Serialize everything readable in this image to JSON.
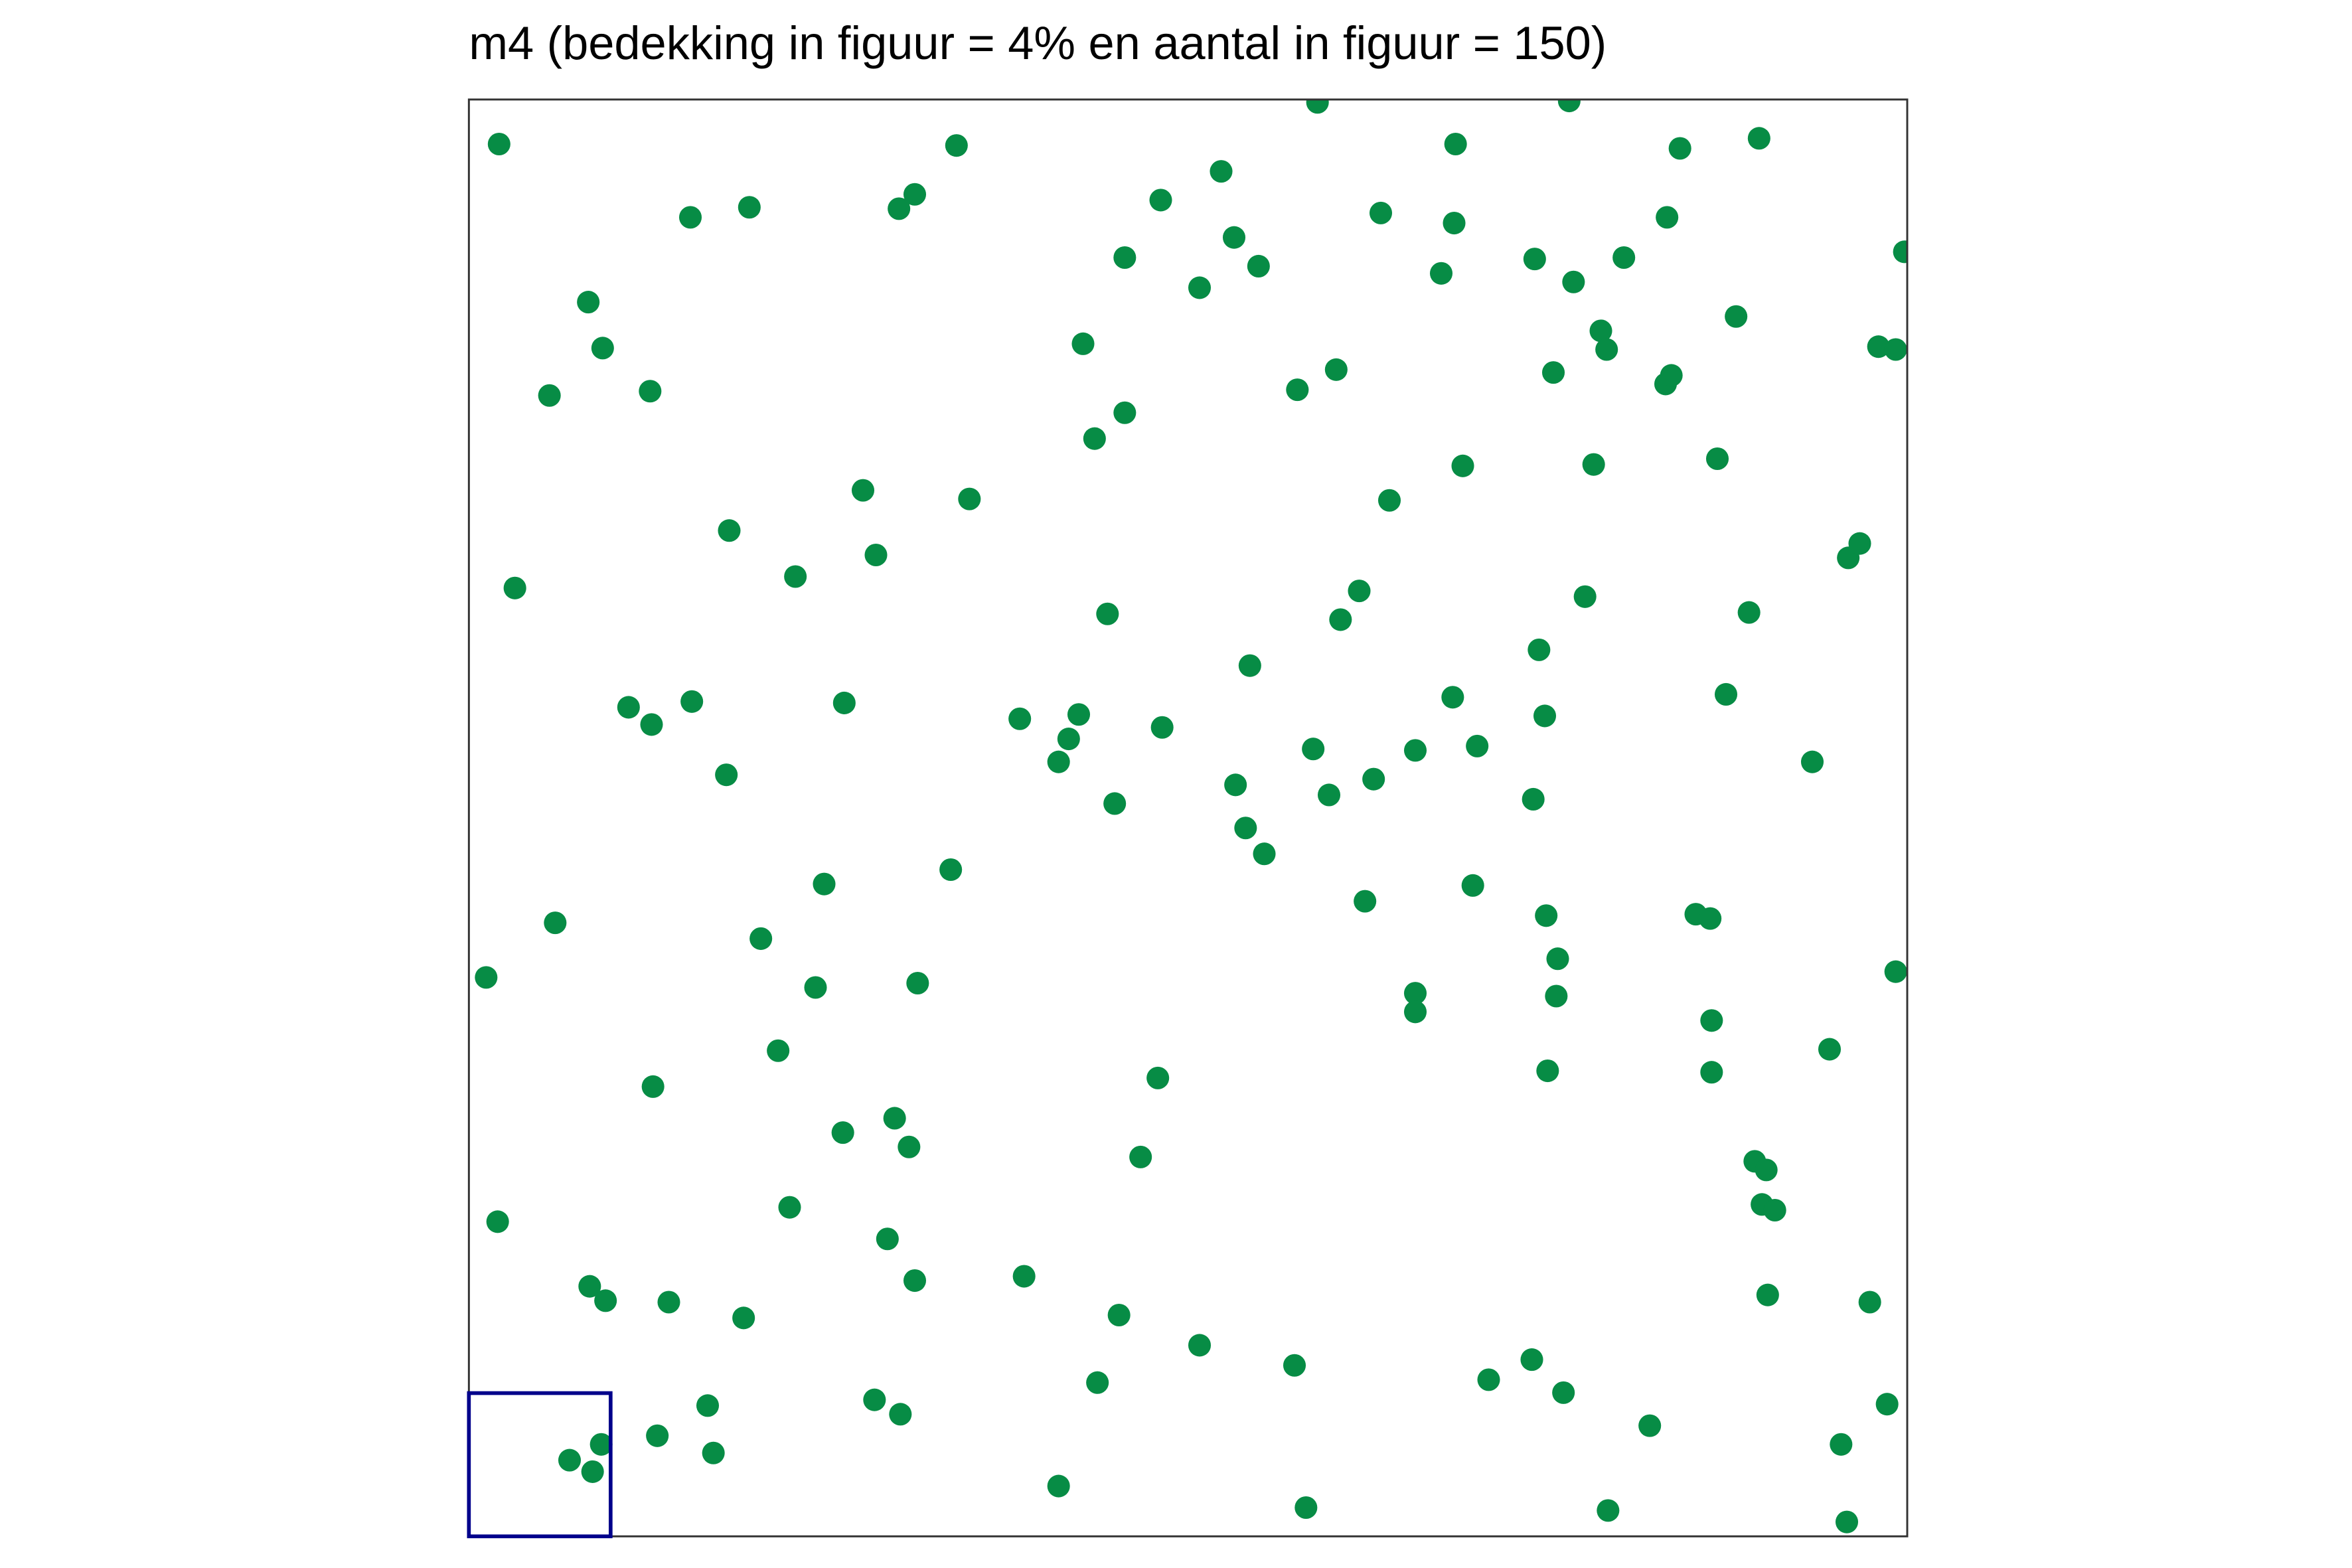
{
  "chart_data": {
    "type": "scatter",
    "title": "m4 (bedekking in figuur = 4% en aantal in figuur = 150)",
    "color": "#078c45",
    "xlim": [
      0,
      100
    ],
    "ylim": [
      0,
      100
    ],
    "x": [
      2.1,
      33.9,
      59.0,
      76.5,
      68.6,
      84.2,
      89.7,
      15.4,
      19.5,
      29.9,
      31.0,
      52.3,
      48.1,
      63.4,
      68.5,
      83.3,
      99.8,
      45.6,
      53.2,
      54.9,
      50.8,
      67.6,
      74.1,
      76.8,
      80.3,
      8.3,
      9.3,
      5.6,
      12.6,
      42.7,
      57.6,
      60.3,
      75.4,
      78.7,
      79.1,
      83.2,
      83.6,
      88.1,
      98.0,
      99.2,
      45.6,
      43.5,
      69.1,
      78.2,
      86.8,
      27.4,
      34.8,
      64.0,
      18.1,
      28.3,
      22.7,
      3.2,
      95.9,
      96.7,
      61.9,
      60.6,
      77.6,
      89.0,
      44.4,
      54.3,
      74.4,
      11.1,
      12.7,
      15.5,
      26.1,
      38.3,
      42.4,
      41.7,
      41.0,
      48.2,
      68.4,
      74.8,
      87.4,
      58.7,
      65.8,
      70.1,
      17.9,
      53.3,
      59.8,
      62.9,
      44.9,
      74.0,
      93.4,
      54.0,
      55.3,
      24.7,
      33.5,
      69.8,
      62.3,
      6.0,
      20.3,
      74.9,
      85.3,
      86.3,
      1.2,
      24.1,
      31.2,
      75.7,
      99.2,
      65.8,
      65.8,
      75.6,
      86.4,
      21.5,
      94.6,
      12.8,
      47.9,
      75.0,
      86.4,
      26.0,
      29.6,
      30.6,
      46.7,
      89.4,
      90.2,
      89.9,
      90.8,
      2.0,
      22.3,
      29.1,
      8.4,
      9.5,
      13.9,
      19.1,
      31.0,
      38.6,
      45.2,
      90.3,
      97.4,
      50.8,
      57.4,
      43.7,
      70.9,
      73.9,
      76.1,
      16.6,
      28.2,
      30.0,
      98.6,
      82.1,
      13.1,
      9.2,
      7.0,
      8.6,
      17.0,
      95.4,
      41.0,
      58.2,
      79.2,
      95.8
    ],
    "y": [
      96.9,
      96.8,
      99.8,
      99.9,
      96.9,
      96.6,
      97.3,
      91.8,
      92.5,
      92.4,
      93.4,
      95.0,
      93.0,
      92.1,
      91.4,
      91.8,
      89.4,
      89.0,
      90.4,
      88.4,
      86.9,
      87.9,
      88.9,
      87.3,
      89.0,
      85.9,
      82.7,
      79.4,
      79.7,
      83.0,
      79.8,
      81.2,
      81.0,
      83.9,
      82.6,
      80.2,
      80.8,
      84.9,
      82.8,
      82.6,
      78.2,
      76.4,
      74.5,
      74.6,
      75.0,
      72.8,
      72.2,
      72.1,
      70.0,
      68.3,
      66.8,
      66.0,
      68.1,
      69.1,
      65.8,
      63.8,
      65.4,
      64.3,
      64.2,
      60.6,
      61.7,
      57.7,
      56.5,
      58.1,
      58.0,
      56.9,
      57.2,
      55.5,
      53.9,
      56.3,
      58.4,
      57.1,
      58.6,
      54.8,
      54.7,
      55.0,
      53.0,
      52.3,
      51.6,
      52.7,
      51.0,
      51.3,
      53.9,
      49.3,
      47.5,
      45.4,
      46.4,
      45.3,
      44.2,
      42.7,
      41.6,
      43.2,
      43.3,
      43.0,
      38.9,
      38.2,
      38.5,
      40.2,
      39.3,
      37.8,
      36.5,
      37.6,
      35.9,
      33.8,
      33.9,
      31.3,
      31.9,
      32.4,
      32.3,
      28.1,
      29.1,
      27.1,
      26.4,
      26.1,
      25.5,
      23.1,
      22.7,
      21.9,
      22.9,
      20.7,
      17.4,
      16.4,
      16.3,
      15.2,
      17.8,
      18.1,
      15.4,
      16.8,
      16.3,
      13.3,
      11.9,
      10.7,
      10.9,
      12.3,
      10.0,
      9.1,
      9.5,
      8.5,
      9.2,
      7.7,
      7.0,
      6.4,
      5.3,
      4.5,
      5.8,
      6.4,
      3.5,
      2.0,
      1.8,
      1.0
    ]
  }
}
